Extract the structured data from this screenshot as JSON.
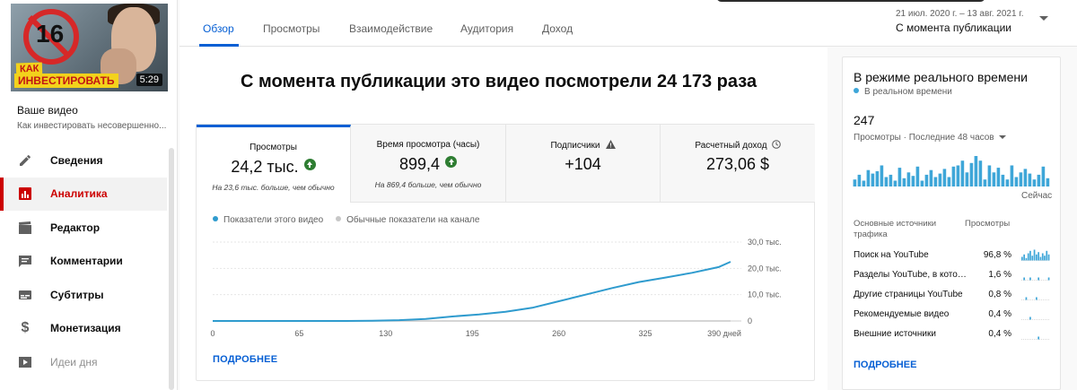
{
  "sidebar": {
    "thumbnail": {
      "badge": "16",
      "caption_line1": "КАК",
      "caption_line2": "ИНВЕСТИРОВАТЬ",
      "duration": "5:29"
    },
    "your_video_title": "Ваше видео",
    "your_video_subtitle": "Как инвестировать несовершенно...",
    "items": [
      {
        "label": "Сведения",
        "icon": "pencil-icon"
      },
      {
        "label": "Аналитика",
        "icon": "analytics-icon",
        "active": true
      },
      {
        "label": "Редактор",
        "icon": "clapperboard-icon"
      },
      {
        "label": "Комментарии",
        "icon": "comment-icon"
      },
      {
        "label": "Субтитры",
        "icon": "subtitles-icon"
      },
      {
        "label": "Монетизация",
        "icon": "dollar-icon"
      },
      {
        "label": "Идеи дня",
        "icon": "ideas-icon",
        "dim": true
      }
    ]
  },
  "tabs": [
    "Обзор",
    "Просмотры",
    "Взаимодействие",
    "Аудитория",
    "Доход"
  ],
  "date_range": {
    "range": "21 июл. 2020 г. – 13 авг. 2021 г.",
    "label": "С момента публикации"
  },
  "headline": "С момента публикации это видео посмотрели 24 173 раза",
  "metrics": [
    {
      "label": "Просмотры",
      "value": "24,2 тыс.",
      "note": "На 23,6 тыс. больше, чем обычно",
      "trend": "up"
    },
    {
      "label": "Время просмотра (часы)",
      "value": "899,4",
      "note": "На 869,4 больше, чем обычно",
      "trend": "up"
    },
    {
      "label": "Подписчики",
      "value": "+104",
      "note": "",
      "icon": "warning-icon"
    },
    {
      "label": "Расчетный доход",
      "value": "273,06 $",
      "note": "",
      "icon": "clock-icon"
    }
  ],
  "legend": {
    "this_video": "Показатели этого видео",
    "channel_typical": "Обычные показатели на канале"
  },
  "chart_data": {
    "type": "line",
    "x_ticks": [
      "0",
      "65",
      "130",
      "195",
      "260",
      "325",
      "390 дней"
    ],
    "y_ticks": [
      "0",
      "10,0 тыс.",
      "20,0 тыс.",
      "30,0 тыс."
    ],
    "ylim": [
      0,
      30000
    ],
    "xlim": [
      0,
      389
    ],
    "series": [
      {
        "name": "Показатели этого видео",
        "color": "#2f9bce",
        "x": [
          0,
          20,
          40,
          60,
          80,
          100,
          120,
          140,
          160,
          180,
          200,
          220,
          240,
          260,
          280,
          300,
          320,
          340,
          360,
          380,
          389
        ],
        "y": [
          0,
          0,
          0,
          0,
          0,
          0,
          100,
          300,
          800,
          1700,
          2500,
          3500,
          5000,
          7500,
          10000,
          12500,
          14800,
          16500,
          18300,
          20500,
          22500
        ]
      },
      {
        "name": "Обычные показатели на канале",
        "color": "#c7c7c7",
        "x": [
          0,
          389
        ],
        "y": [
          0,
          0
        ]
      }
    ]
  },
  "more_label": "ПОДРОБНЕЕ",
  "realtime": {
    "title": "В режиме реального времени",
    "live": "В реальном времени",
    "count": "247",
    "metric": "Просмотры · Последние 48 часов",
    "now": "Сейчас",
    "bars": [
      6,
      10,
      5,
      14,
      11,
      13,
      18,
      8,
      10,
      5,
      16,
      7,
      12,
      9,
      17,
      5,
      10,
      14,
      8,
      11,
      15,
      8,
      17,
      18,
      22,
      12,
      20,
      26,
      22,
      6,
      18,
      12,
      16,
      10,
      6,
      18,
      8,
      12,
      15,
      11,
      6,
      10,
      17,
      7
    ],
    "source_header": "Основные источники трафика",
    "views_header": "Просмотры",
    "sources": [
      {
        "name": "Поиск на YouTube",
        "value": "96,8 %",
        "spark": [
          3,
          5,
          2,
          6,
          8,
          4,
          9,
          5,
          7,
          3,
          6,
          4,
          8,
          5
        ]
      },
      {
        "name": "Разделы YouTube, в котор...",
        "value": "1,6 %",
        "spark": [
          0,
          1,
          0,
          0,
          1,
          0,
          0,
          0,
          1,
          0,
          0,
          0,
          0,
          1
        ]
      },
      {
        "name": "Другие страницы YouTube",
        "value": "0,8 %",
        "spark": [
          0,
          0,
          1,
          0,
          0,
          0,
          0,
          1,
          0,
          0,
          0,
          0,
          0,
          0
        ]
      },
      {
        "name": "Рекомендуемые видео",
        "value": "0,4 %",
        "spark": [
          0,
          0,
          0,
          0,
          1,
          0,
          0,
          0,
          0,
          0,
          0,
          0,
          0,
          0
        ]
      },
      {
        "name": "Внешние источники",
        "value": "0,4 %",
        "spark": [
          0,
          0,
          0,
          0,
          0,
          0,
          0,
          0,
          1,
          0,
          0,
          0,
          0,
          0
        ]
      }
    ],
    "more_label": "ПОДРОБНЕЕ"
  }
}
